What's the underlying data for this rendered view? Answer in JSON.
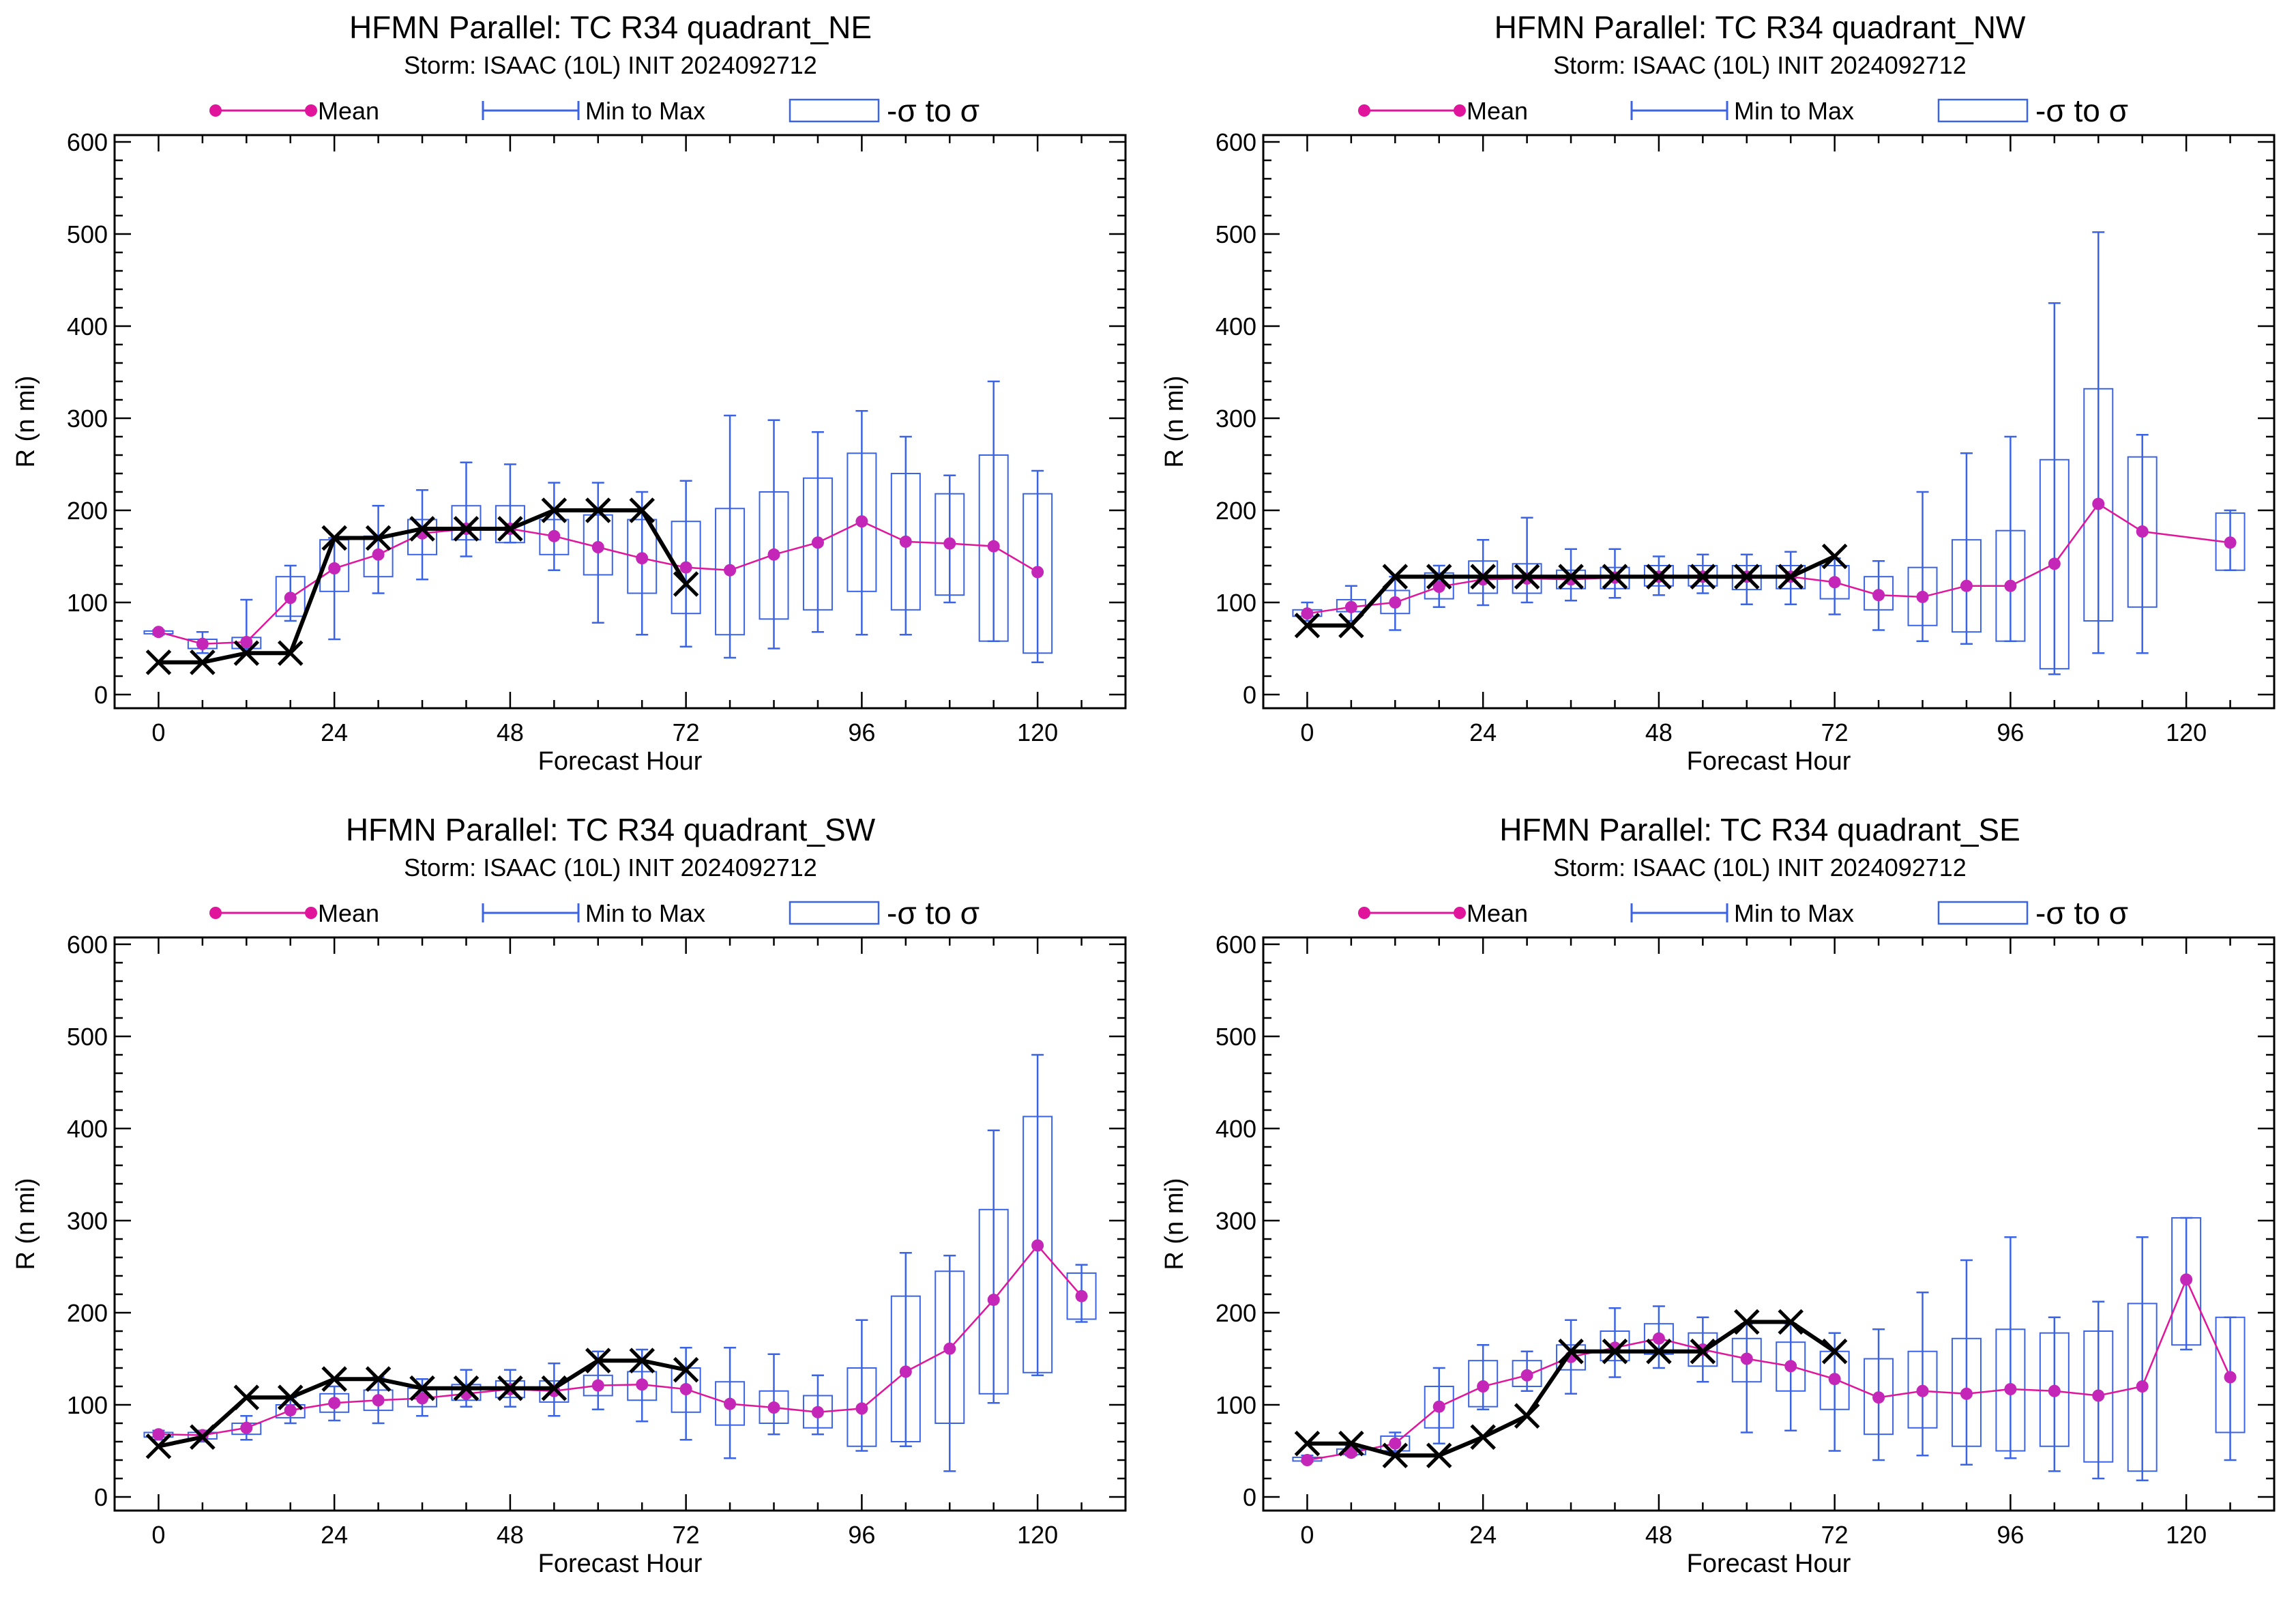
{
  "legend": {
    "mean_label": "Mean",
    "minmax_label": "Min to Max",
    "sigma_label": "-σ to σ"
  },
  "colors": {
    "mean": "#e0159b",
    "mean_marker": "#c426b8",
    "minmax": "#3b63e6",
    "best_track": "#000000"
  },
  "chart_data": [
    {
      "type": "line",
      "title": "HFMN Parallel: TC  R34 quadrant_NE",
      "subtitle": "Storm: ISAAC (10L) INIT 2024092712",
      "xlabel": "Forecast Hour",
      "ylabel": "R (n mi)",
      "xlim": [
        -6,
        132
      ],
      "ylim": [
        0,
        600
      ],
      "xticks": [
        0,
        24,
        48,
        72,
        96,
        120
      ],
      "yticks": [
        0,
        100,
        200,
        300,
        400,
        500,
        600
      ],
      "series": [
        {
          "kind": "mean",
          "x": [
            0,
            6,
            12,
            18,
            24,
            30,
            36,
            42,
            48,
            54,
            60,
            66,
            72,
            78,
            84,
            90,
            96,
            102,
            108,
            114,
            120
          ],
          "values": [
            68,
            55,
            57,
            105,
            137,
            152,
            175,
            180,
            180,
            172,
            160,
            148,
            138,
            135,
            152,
            165,
            188,
            166,
            164,
            161,
            133
          ]
        },
        {
          "kind": "best_track",
          "x": [
            0,
            6,
            12,
            18,
            24,
            30,
            36,
            42,
            48,
            54,
            60,
            66,
            72
          ],
          "values": [
            35,
            35,
            45,
            45,
            170,
            170,
            180,
            180,
            180,
            200,
            200,
            200,
            120
          ]
        }
      ],
      "ranges": {
        "x": [
          0,
          6,
          12,
          18,
          24,
          30,
          36,
          42,
          48,
          54,
          60,
          66,
          72,
          78,
          84,
          90,
          96,
          102,
          108,
          114,
          120
        ],
        "min": [
          65,
          45,
          45,
          80,
          60,
          110,
          125,
          150,
          165,
          135,
          78,
          65,
          52,
          40,
          50,
          68,
          65,
          65,
          100,
          58,
          35
        ],
        "max": [
          70,
          68,
          103,
          140,
          170,
          205,
          222,
          252,
          250,
          230,
          230,
          220,
          232,
          303,
          298,
          285,
          308,
          280,
          238,
          340,
          243
        ],
        "sigma_low": [
          66,
          50,
          50,
          85,
          112,
          128,
          152,
          168,
          165,
          152,
          130,
          110,
          88,
          65,
          82,
          92,
          112,
          92,
          108,
          58,
          45
        ],
        "sigma_high": [
          69,
          60,
          62,
          128,
          168,
          172,
          190,
          205,
          205,
          190,
          195,
          190,
          188,
          202,
          220,
          235,
          262,
          240,
          218,
          260,
          218
        ]
      }
    },
    {
      "type": "line",
      "title": "HFMN Parallel: TC  R34 quadrant_NW",
      "subtitle": "Storm: ISAAC (10L) INIT 2024092712",
      "xlabel": "Forecast Hour",
      "ylabel": "R (n mi)",
      "xlim": [
        -6,
        132
      ],
      "ylim": [
        0,
        600
      ],
      "xticks": [
        0,
        24,
        48,
        72,
        96,
        120
      ],
      "yticks": [
        0,
        100,
        200,
        300,
        400,
        500,
        600
      ],
      "series": [
        {
          "kind": "mean",
          "x": [
            0,
            6,
            12,
            18,
            24,
            30,
            36,
            42,
            48,
            54,
            60,
            66,
            72,
            78,
            84,
            90,
            96,
            102,
            108,
            114,
            126
          ],
          "values": [
            88,
            95,
            100,
            117,
            125,
            126,
            125,
            127,
            128,
            128,
            128,
            128,
            122,
            108,
            106,
            118,
            118,
            142,
            207,
            177,
            165
          ]
        },
        {
          "kind": "best_track",
          "x": [
            0,
            6,
            12,
            18,
            24,
            30,
            36,
            42,
            48,
            54,
            60,
            66,
            72
          ],
          "values": [
            75,
            75,
            128,
            128,
            128,
            128,
            128,
            128,
            128,
            128,
            128,
            128,
            150
          ]
        }
      ],
      "ranges": {
        "x": [
          0,
          6,
          12,
          18,
          24,
          30,
          36,
          42,
          48,
          54,
          60,
          66,
          72,
          78,
          84,
          90,
          96,
          102,
          108,
          114,
          126
        ],
        "min": [
          80,
          80,
          70,
          95,
          97,
          100,
          102,
          105,
          108,
          110,
          98,
          98,
          87,
          70,
          58,
          55,
          58,
          22,
          45,
          45,
          135
        ],
        "max": [
          100,
          118,
          128,
          140,
          168,
          192,
          158,
          158,
          150,
          152,
          152,
          155,
          148,
          145,
          220,
          262,
          280,
          425,
          502,
          282,
          200
        ],
        "sigma_low": [
          85,
          90,
          88,
          104,
          110,
          110,
          115,
          115,
          118,
          118,
          114,
          115,
          104,
          92,
          75,
          68,
          58,
          28,
          80,
          95,
          135
        ],
        "sigma_high": [
          92,
          103,
          113,
          132,
          145,
          142,
          135,
          138,
          140,
          140,
          140,
          140,
          140,
          128,
          138,
          168,
          178,
          255,
          332,
          258,
          197
        ]
      }
    },
    {
      "type": "line",
      "title": "HFMN Parallel: TC  R34 quadrant_SW",
      "subtitle": "Storm: ISAAC (10L) INIT 2024092712",
      "xlabel": "Forecast Hour",
      "ylabel": "R (n mi)",
      "xlim": [
        -6,
        132
      ],
      "ylim": [
        0,
        600
      ],
      "xticks": [
        0,
        24,
        48,
        72,
        96,
        120
      ],
      "yticks": [
        0,
        100,
        200,
        300,
        400,
        500,
        600
      ],
      "series": [
        {
          "kind": "mean",
          "x": [
            0,
            6,
            12,
            18,
            24,
            30,
            36,
            42,
            48,
            54,
            60,
            66,
            72,
            78,
            84,
            90,
            96,
            102,
            108,
            114,
            120,
            126
          ],
          "values": [
            68,
            67,
            75,
            94,
            102,
            105,
            107,
            112,
            117,
            115,
            121,
            122,
            117,
            101,
            97,
            92,
            96,
            136,
            161,
            214,
            273,
            218
          ]
        },
        {
          "kind": "best_track",
          "x": [
            0,
            6,
            12,
            18,
            24,
            30,
            36,
            42,
            48,
            54,
            60,
            66,
            72
          ],
          "values": [
            55,
            65,
            108,
            108,
            128,
            128,
            118,
            118,
            118,
            118,
            148,
            148,
            138
          ]
        }
      ],
      "ranges": {
        "x": [
          0,
          6,
          12,
          18,
          24,
          30,
          36,
          42,
          48,
          54,
          60,
          66,
          72,
          78,
          84,
          90,
          96,
          102,
          108,
          114,
          120,
          126
        ],
        "min": [
          62,
          60,
          62,
          80,
          83,
          80,
          88,
          98,
          98,
          88,
          95,
          82,
          62,
          42,
          68,
          68,
          50,
          55,
          28,
          102,
          132,
          190
        ],
        "max": [
          72,
          72,
          88,
          108,
          120,
          130,
          128,
          138,
          138,
          145,
          158,
          160,
          162,
          162,
          155,
          132,
          192,
          265,
          262,
          398,
          480,
          252
        ],
        "sigma_low": [
          65,
          63,
          68,
          86,
          92,
          94,
          98,
          105,
          108,
          103,
          110,
          105,
          92,
          78,
          80,
          75,
          55,
          60,
          80,
          112,
          135,
          193
        ],
        "sigma_high": [
          70,
          70,
          80,
          100,
          112,
          116,
          118,
          122,
          126,
          126,
          132,
          136,
          140,
          125,
          115,
          110,
          140,
          218,
          245,
          312,
          413,
          243
        ]
      }
    },
    {
      "type": "line",
      "title": "HFMN Parallel: TC  R34 quadrant_SE",
      "subtitle": "Storm: ISAAC (10L) INIT 2024092712",
      "xlabel": "Forecast Hour",
      "ylabel": "R (n mi)",
      "xlim": [
        -6,
        132
      ],
      "ylim": [
        0,
        600
      ],
      "xticks": [
        0,
        24,
        48,
        72,
        96,
        120
      ],
      "yticks": [
        0,
        100,
        200,
        300,
        400,
        500,
        600
      ],
      "series": [
        {
          "kind": "mean",
          "x": [
            0,
            6,
            12,
            18,
            24,
            30,
            36,
            42,
            48,
            54,
            60,
            66,
            72,
            78,
            84,
            90,
            96,
            102,
            108,
            114,
            120,
            126
          ],
          "values": [
            40,
            48,
            58,
            98,
            120,
            132,
            152,
            162,
            172,
            160,
            150,
            142,
            128,
            108,
            115,
            112,
            117,
            115,
            110,
            120,
            236,
            130
          ]
        },
        {
          "kind": "best_track",
          "x": [
            0,
            6,
            12,
            18,
            24,
            30,
            36,
            42,
            48,
            54,
            60,
            66,
            72
          ],
          "values": [
            58,
            58,
            45,
            45,
            65,
            88,
            158,
            158,
            158,
            158,
            190,
            190,
            158
          ]
        }
      ],
      "ranges": {
        "x": [
          0,
          6,
          12,
          18,
          24,
          30,
          36,
          42,
          48,
          54,
          60,
          66,
          72,
          78,
          84,
          90,
          96,
          102,
          108,
          114,
          120,
          126
        ],
        "min": [
          38,
          45,
          45,
          58,
          95,
          115,
          112,
          130,
          140,
          125,
          70,
          72,
          50,
          40,
          45,
          35,
          42,
          28,
          20,
          18,
          160,
          40
        ],
        "max": [
          45,
          55,
          70,
          140,
          165,
          158,
          192,
          205,
          207,
          195,
          188,
          188,
          178,
          182,
          222,
          257,
          282,
          195,
          212,
          282,
          303,
          195
        ],
        "sigma_low": [
          39,
          46,
          50,
          75,
          98,
          120,
          138,
          148,
          155,
          142,
          125,
          115,
          95,
          68,
          75,
          55,
          50,
          55,
          38,
          28,
          165,
          70
        ],
        "sigma_high": [
          43,
          52,
          66,
          120,
          148,
          148,
          165,
          180,
          188,
          178,
          172,
          168,
          158,
          150,
          158,
          172,
          182,
          178,
          180,
          210,
          303,
          195
        ]
      }
    }
  ]
}
